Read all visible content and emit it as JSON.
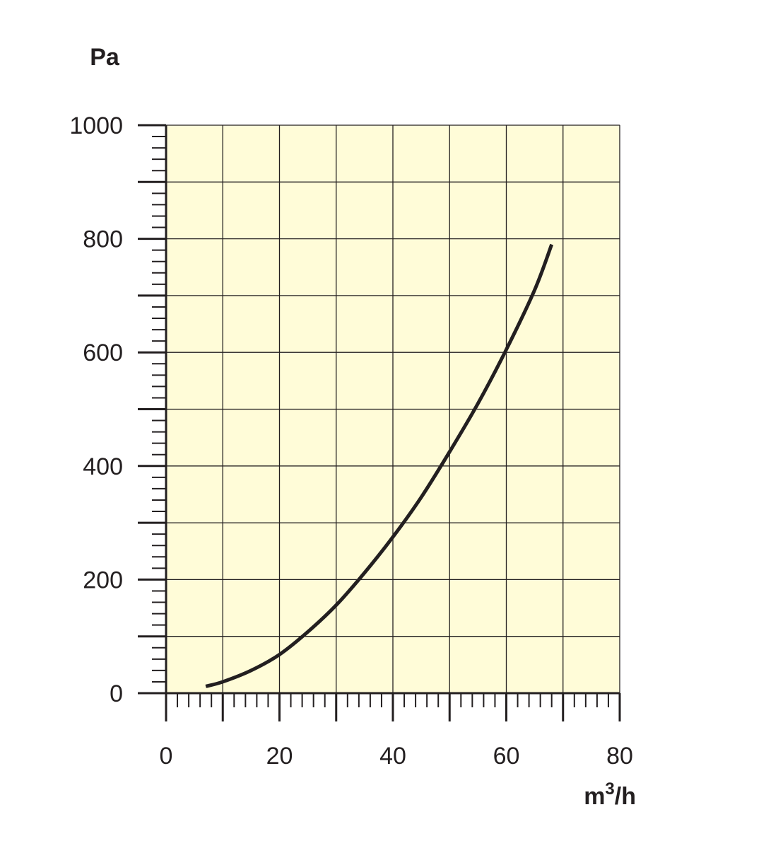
{
  "chart_data": {
    "type": "line",
    "title": "",
    "ylabel": "Pa",
    "xlabel_base": "m",
    "xlabel_sup": "3",
    "xlabel_tail": "/h",
    "xlim": [
      0,
      80
    ],
    "ylim": [
      0,
      1000
    ],
    "x_ticks": [
      0,
      20,
      40,
      60,
      80
    ],
    "y_ticks": [
      0,
      200,
      400,
      600,
      800,
      1000
    ],
    "x_ticks_labels": [
      "0",
      "20",
      "40",
      "60",
      "80"
    ],
    "y_ticks_labels": [
      "0",
      "200",
      "400",
      "600",
      "800",
      "1000"
    ],
    "x_grid_step": 10,
    "y_grid_step": 100,
    "x_minor_step": 2,
    "y_minor_step": 20,
    "grid": true,
    "legend": "none",
    "series": [
      {
        "x": [
          7,
          10,
          15,
          20,
          25,
          30,
          35,
          40,
          45,
          50,
          55,
          60,
          65,
          68
        ],
        "values": [
          12,
          20,
          40,
          68,
          108,
          155,
          212,
          275,
          345,
          425,
          510,
          605,
          710,
          790
        ]
      }
    ],
    "colors": {
      "plot_background": "#fffcd8",
      "grid": "#231f20",
      "axis": "#231f20",
      "line": "#231f20"
    }
  }
}
